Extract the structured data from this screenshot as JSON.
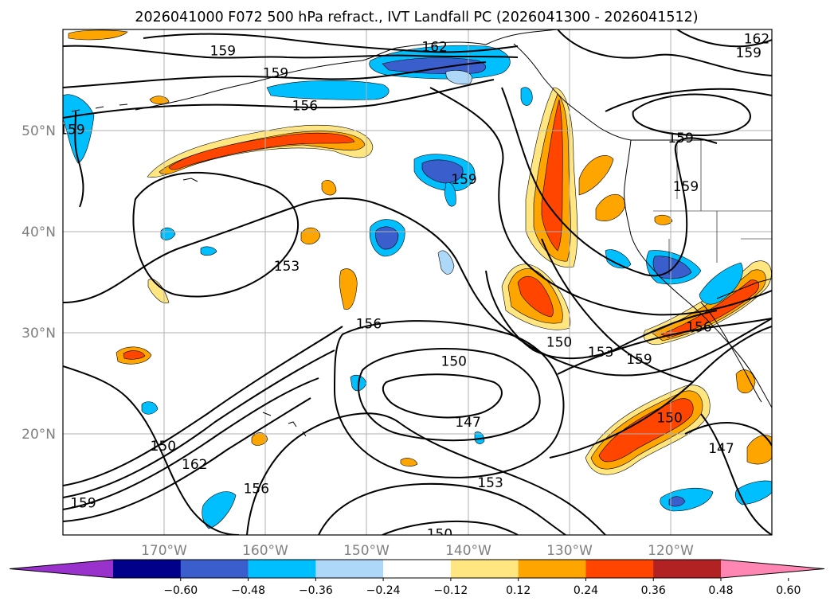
{
  "chart_data": {
    "type": "heatmap",
    "title": "2026041000 F072 500 hPa refract., IVT Landfall PC (2026041300 - 2026041512)",
    "map": {
      "lon_range": [
        -180,
        -110
      ],
      "lat_range": [
        10,
        60
      ],
      "projection": "PlateCarree",
      "gridlines": true,
      "x_ticks": [
        -170,
        -160,
        -150,
        -140,
        -130,
        -120
      ],
      "x_tick_labels": [
        "170°W",
        "160°W",
        "150°W",
        "140°W",
        "130°W",
        "120°W"
      ],
      "y_ticks": [
        20,
        30,
        40,
        50
      ],
      "y_tick_labels": [
        "20°N",
        "30°N",
        "40°N",
        "50°N"
      ]
    },
    "colorbar": {
      "orientation": "horizontal",
      "extend": "both",
      "levels": [
        -0.6,
        -0.48,
        -0.36,
        -0.24,
        -0.12,
        0.12,
        0.24,
        0.36,
        0.48,
        0.6
      ],
      "tick_labels": [
        "−0.60",
        "−0.48",
        "−0.36",
        "−0.24",
        "−0.12",
        "0.12",
        "0.24",
        "0.36",
        "0.48",
        "0.60"
      ],
      "colors": [
        "#9932cc",
        "#00008b",
        "#3a5fcd",
        "#00bfff",
        "#add8f7",
        "#ffffff",
        "#ffe680",
        "#ffa500",
        "#ff4500",
        "#b22222",
        "#ff85b3"
      ]
    },
    "contour_field": "500 hPa refractivity",
    "contour_labels": [
      {
        "text": "159",
        "lon": -164.2,
        "lat": 57.9
      },
      {
        "text": "162",
        "lon": -143.3,
        "lat": 58.3
      },
      {
        "text": "162",
        "lon": -111.5,
        "lat": 59.1
      },
      {
        "text": "159",
        "lon": -112.3,
        "lat": 57.7
      },
      {
        "text": "159",
        "lon": -159.0,
        "lat": 55.7
      },
      {
        "text": "156",
        "lon": -156.1,
        "lat": 52.5
      },
      {
        "text": "159",
        "lon": -179.1,
        "lat": 50.1
      },
      {
        "text": "159",
        "lon": -119.0,
        "lat": 49.3
      },
      {
        "text": "159",
        "lon": -140.4,
        "lat": 45.2
      },
      {
        "text": "159",
        "lon": -118.5,
        "lat": 44.5
      },
      {
        "text": "153",
        "lon": -157.9,
        "lat": 36.6
      },
      {
        "text": "156",
        "lon": -149.8,
        "lat": 30.9
      },
      {
        "text": "150",
        "lon": -141.4,
        "lat": 27.2
      },
      {
        "text": "150",
        "lon": -131.0,
        "lat": 29.1
      },
      {
        "text": "153",
        "lon": -126.9,
        "lat": 28.1
      },
      {
        "text": "159",
        "lon": -123.1,
        "lat": 27.4
      },
      {
        "text": "156",
        "lon": -117.2,
        "lat": 30.6
      },
      {
        "text": "147",
        "lon": -140.0,
        "lat": 21.2
      },
      {
        "text": "150",
        "lon": -120.1,
        "lat": 21.6
      },
      {
        "text": "147",
        "lon": -115.0,
        "lat": 18.6
      },
      {
        "text": "150",
        "lon": -170.1,
        "lat": 18.8
      },
      {
        "text": "162",
        "lon": -167.0,
        "lat": 17.0
      },
      {
        "text": "159",
        "lon": -178.0,
        "lat": 13.2
      },
      {
        "text": "156",
        "lon": -160.9,
        "lat": 14.6
      },
      {
        "text": "153",
        "lon": -137.8,
        "lat": 15.2
      },
      {
        "text": "150",
        "lon": -142.8,
        "lat": 10.1
      }
    ]
  }
}
